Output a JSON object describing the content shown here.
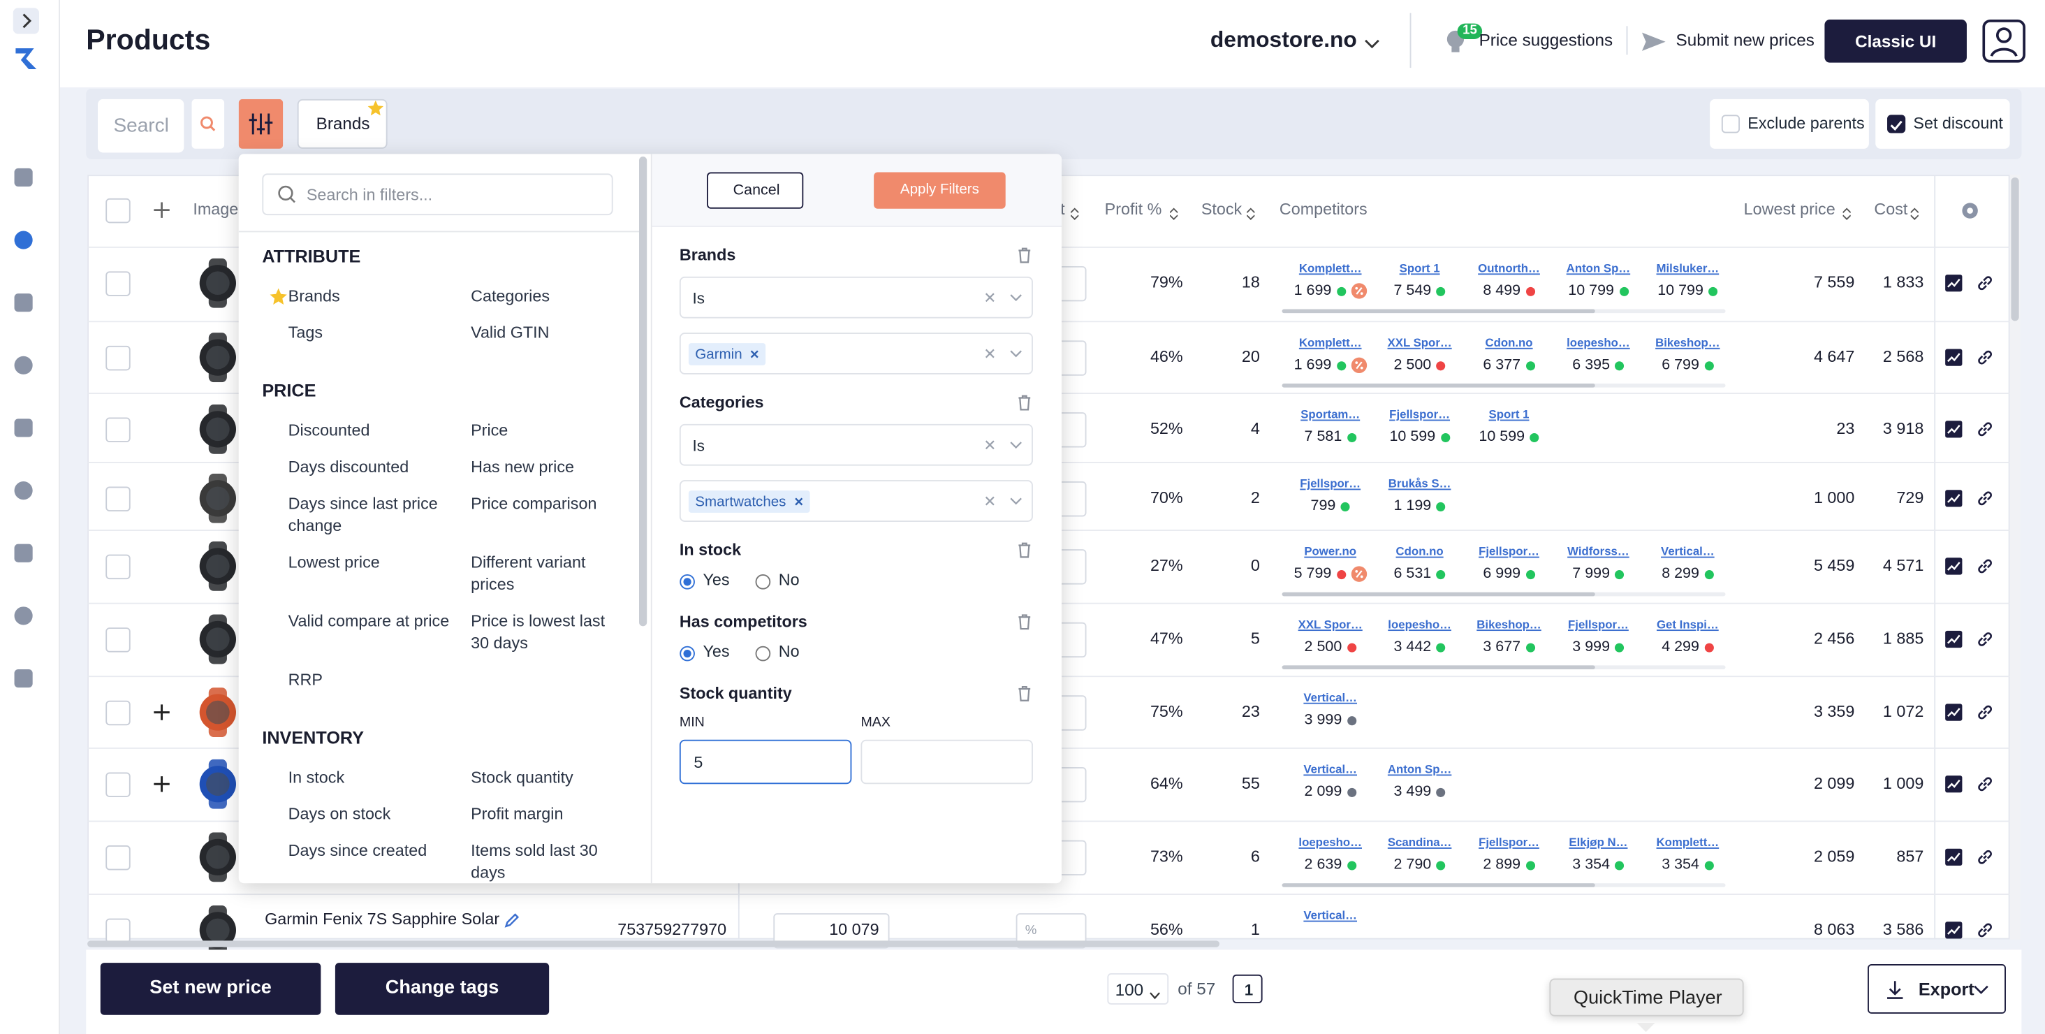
{
  "header": {
    "title": "Products",
    "store": "demostore.no",
    "suggestions_count": "15",
    "price_suggestions": "Price suggestions",
    "submit_prices": "Submit new prices",
    "classic_ui": "Classic UI"
  },
  "toolbar": {
    "search_placeholder": "Searcl",
    "brands_chip": "Brands",
    "exclude_parents": "Exclude parents",
    "exclude_parents_checked": false,
    "set_discount": "Set discount",
    "set_discount_checked": true
  },
  "table": {
    "columns": {
      "image": "Image",
      "discount": "t",
      "profit": "Profit %",
      "stock": "Stock",
      "competitors": "Competitors",
      "lowest_price": "Lowest price",
      "cost": "Cost"
    },
    "rows": [
      {
        "thumb": "#26282c",
        "profit": "79%",
        "stock": "18",
        "lowest_price": "7 559",
        "cost": "1 833",
        "competitors": [
          {
            "name": "Komplett…",
            "price": "1 699",
            "status": "#22c55e",
            "discount": true
          },
          {
            "name": "Sport 1",
            "price": "7 549",
            "status": "#22c55e"
          },
          {
            "name": "Outnorth…",
            "price": "8 499",
            "status": "#ef4444"
          },
          {
            "name": "Anton Sp…",
            "price": "10 799",
            "status": "#22c55e"
          },
          {
            "name": "Milsluker…",
            "price": "10 799",
            "status": "#22c55e"
          }
        ]
      },
      {
        "thumb": "#26282c",
        "profit": "46%",
        "stock": "20",
        "lowest_price": "4 647",
        "cost": "2 568",
        "competitors": [
          {
            "name": "Komplett…",
            "price": "1 699",
            "status": "#22c55e",
            "discount": true
          },
          {
            "name": "XXL Spor…",
            "price": "2 500",
            "status": "#ef4444"
          },
          {
            "name": "Cdon.no",
            "price": "6 377",
            "status": "#22c55e"
          },
          {
            "name": "loepesho…",
            "price": "6 395",
            "status": "#22c55e"
          },
          {
            "name": "Bikeshop…",
            "price": "6 799",
            "status": "#22c55e"
          }
        ]
      },
      {
        "thumb": "#26282c",
        "profit": "52%",
        "stock": "4",
        "lowest_price": "23",
        "cost": "3 918",
        "competitors": [
          {
            "name": "Sportam…",
            "price": "7 581",
            "status": "#22c55e"
          },
          {
            "name": "Fjellspor…",
            "price": "10 599",
            "status": "#22c55e"
          },
          {
            "name": "Sport 1",
            "price": "10 599",
            "status": "#22c55e"
          }
        ]
      },
      {
        "thumb": "#3a3a3a",
        "profit": "70%",
        "stock": "2",
        "lowest_price": "1 000",
        "cost": "729",
        "competitors": [
          {
            "name": "Fjellspor…",
            "price": "799",
            "status": "#22c55e"
          },
          {
            "name": "Brukås S…",
            "price": "1 199",
            "status": "#22c55e"
          }
        ]
      },
      {
        "thumb": "#26282c",
        "profit": "27%",
        "stock": "0",
        "lowest_price": "5 459",
        "cost": "4 571",
        "competitors": [
          {
            "name": "Power.no",
            "price": "5 799",
            "status": "#ef4444",
            "discount": true
          },
          {
            "name": "Cdon.no",
            "price": "6 531",
            "status": "#22c55e"
          },
          {
            "name": "Fjellspor…",
            "price": "6 999",
            "status": "#22c55e"
          },
          {
            "name": "Widforss…",
            "price": "7 999",
            "status": "#22c55e"
          },
          {
            "name": "Vertical…",
            "price": "8 299",
            "status": "#22c55e"
          }
        ]
      },
      {
        "thumb": "#26282c",
        "profit": "47%",
        "stock": "5",
        "lowest_price": "2 456",
        "cost": "1 885",
        "competitors": [
          {
            "name": "XXL Spor…",
            "price": "2 500",
            "status": "#ef4444"
          },
          {
            "name": "loepesho…",
            "price": "3 442",
            "status": "#22c55e"
          },
          {
            "name": "Bikeshop…",
            "price": "3 677",
            "status": "#22c55e"
          },
          {
            "name": "Fjellspor…",
            "price": "3 999",
            "status": "#22c55e"
          },
          {
            "name": "Get Inspi…",
            "price": "4 299",
            "status": "#ef4444"
          }
        ]
      },
      {
        "thumb": "#d4552e",
        "expandable": true,
        "profit": "75%",
        "stock": "23",
        "lowest_price": "3 359",
        "cost": "1 072",
        "competitors": [
          {
            "name": "Vertical…",
            "price": "3 999",
            "status": "#6b7280"
          }
        ]
      },
      {
        "thumb": "#1f4fb5",
        "expandable": true,
        "profit": "64%",
        "stock": "55",
        "lowest_price": "2 099",
        "cost": "1 009",
        "competitors": [
          {
            "name": "Vertical…",
            "price": "2 099",
            "status": "#6b7280"
          },
          {
            "name": "Anton Sp…",
            "price": "3 499",
            "status": "#6b7280"
          }
        ]
      },
      {
        "thumb": "#26282c",
        "profit": "73%",
        "stock": "6",
        "lowest_price": "2 059",
        "cost": "857",
        "competitors": [
          {
            "name": "loepesho…",
            "price": "2 639",
            "status": "#22c55e"
          },
          {
            "name": "Scandina…",
            "price": "2 790",
            "status": "#22c55e"
          },
          {
            "name": "Fjellspor…",
            "price": "2 899",
            "status": "#22c55e"
          },
          {
            "name": "Elkjøp N…",
            "price": "3 354",
            "status": "#22c55e"
          },
          {
            "name": "Komplett…",
            "price": "3 354",
            "status": "#22c55e"
          }
        ]
      },
      {
        "thumb": "#26282c",
        "name": "Garmin Fenix 7S Sapphire Solar",
        "gtin": "753759277970",
        "price": "10 079",
        "discount_placeholder": "%",
        "profit": "56%",
        "stock": "1",
        "lowest_price": "8 063",
        "cost": "3 586",
        "competitors": [
          {
            "name": "Vertical…"
          }
        ]
      }
    ]
  },
  "filter_panel": {
    "search_placeholder": "Search in filters...",
    "sections": [
      {
        "title": "ATTRIBUTE",
        "items": [
          {
            "label": "Brands",
            "starred": true
          },
          {
            "label": "Categories"
          },
          {
            "label": "Tags"
          },
          {
            "label": "Valid GTIN"
          }
        ]
      },
      {
        "title": "PRICE",
        "items": [
          {
            "label": "Discounted"
          },
          {
            "label": "Price"
          },
          {
            "label": "Days discounted"
          },
          {
            "label": "Has new price"
          },
          {
            "label": "Days since last price change"
          },
          {
            "label": "Price comparison"
          },
          {
            "label": "Lowest price"
          },
          {
            "label": "Different variant prices"
          },
          {
            "label": "Valid compare at price"
          },
          {
            "label": "Price is lowest last 30 days"
          },
          {
            "label": "RRP"
          }
        ]
      },
      {
        "title": "INVENTORY",
        "items": [
          {
            "label": "In stock"
          },
          {
            "label": "Stock quantity"
          },
          {
            "label": "Days on stock"
          },
          {
            "label": "Profit margin"
          },
          {
            "label": "Days since created"
          },
          {
            "label": "Items sold last 30 days"
          }
        ]
      }
    ],
    "cancel": "Cancel",
    "apply": "Apply Filters",
    "brands": {
      "title": "Brands",
      "operator": "Is",
      "values": [
        "Garmin"
      ]
    },
    "categories": {
      "title": "Categories",
      "operator": "Is",
      "values": [
        "Smartwatches"
      ]
    },
    "in_stock": {
      "title": "In stock",
      "options": [
        "Yes",
        "No"
      ],
      "selected": 0
    },
    "has_competitors": {
      "title": "Has competitors",
      "options": [
        "Yes",
        "No"
      ],
      "selected": 0
    },
    "stock_quantity": {
      "title": "Stock quantity",
      "min_label": "MIN",
      "max_label": "MAX",
      "min": "5"
    }
  },
  "footer": {
    "set_new_price": "Set new price",
    "change_tags": "Change tags",
    "page_size": "100",
    "of_pages": "of 57",
    "page": "1",
    "export": "Export",
    "tooltip": "QuickTime Player"
  }
}
